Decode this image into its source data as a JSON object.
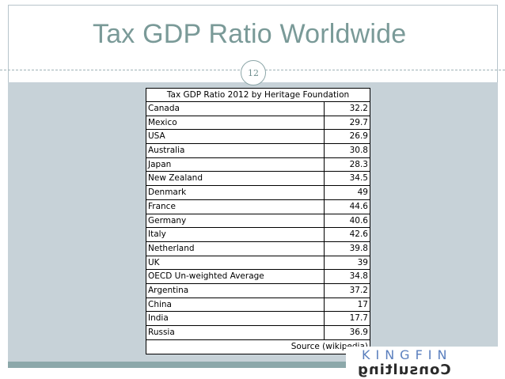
{
  "slide": {
    "title": "Tax GDP Ratio Worldwide",
    "page_number": "12"
  },
  "table": {
    "title": "Tax GDP Ratio 2012 by Heritage Foundation",
    "rows": [
      {
        "country": "Canada",
        "value": "32.2"
      },
      {
        "country": "Mexico",
        "value": "29.7"
      },
      {
        "country": "USA",
        "value": "26.9"
      },
      {
        "country": "Australia",
        "value": "30.8"
      },
      {
        "country": "Japan",
        "value": "28.3"
      },
      {
        "country": "New Zealand",
        "value": "34.5"
      },
      {
        "country": "Denmark",
        "value": "49"
      },
      {
        "country": "France",
        "value": "44.6"
      },
      {
        "country": "Germany",
        "value": "40.6"
      },
      {
        "country": "Italy",
        "value": "42.6"
      },
      {
        "country": "Netherland",
        "value": "39.8"
      },
      {
        "country": "UK",
        "value": "39"
      },
      {
        "country": "OECD Un-weighted Average",
        "value": "34.8"
      },
      {
        "country": "Argentina",
        "value": "37.2"
      },
      {
        "country": "China",
        "value": "17"
      },
      {
        "country": "India",
        "value": "17.7"
      },
      {
        "country": "Russia",
        "value": "36.9"
      }
    ],
    "source": "Source (wikipedia)"
  },
  "logo": {
    "top_text": "KINGFIN",
    "bottom_text": "Consulting"
  },
  "colors": {
    "title": "#7a9a98",
    "panel": "#c7d2d8",
    "band": "#8ca8aa"
  }
}
